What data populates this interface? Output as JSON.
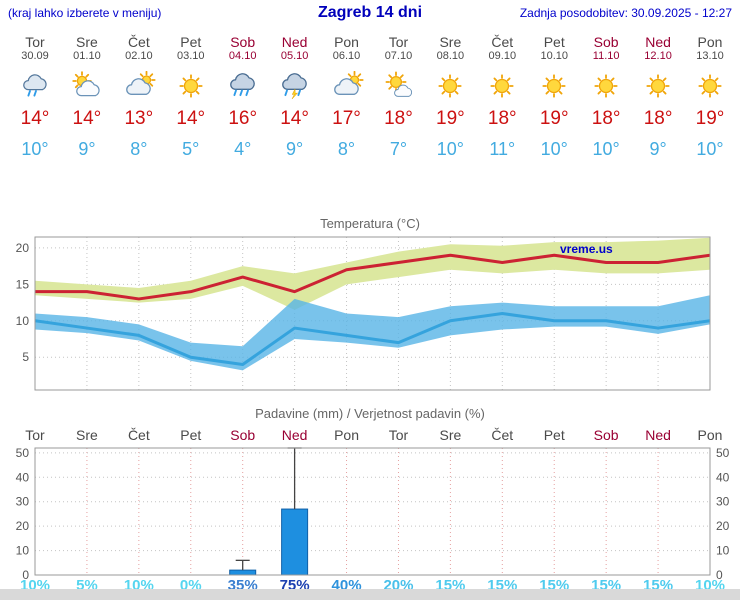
{
  "header": {
    "menu_note": "(kraj lahko izberete v meniju)",
    "title": "Zagreb 14 dni",
    "last_update": "Zadnja posodobitev: 30.09.2025 - 12:27"
  },
  "watermark": "vreme.us",
  "colors": {
    "link_blue": "#0000cc",
    "weekend_red": "#990033",
    "day_gray": "#4a4a4a",
    "high_red": "#cc1111",
    "low_blue": "#42abe0",
    "bar_blue": "#1e8fe0",
    "bar_border": "#1060a8",
    "whisker": "#444444",
    "grid_gray": "#c4c4c4",
    "grid_red": "#e5a0a0",
    "border_gray": "#999999"
  },
  "days": [
    {
      "name": "Tor",
      "date": "30.09",
      "weekend": false,
      "icon": "drizzle",
      "high": "14°",
      "low": "10°"
    },
    {
      "name": "Sre",
      "date": "01.10",
      "weekend": false,
      "icon": "partly",
      "high": "14°",
      "low": "9°"
    },
    {
      "name": "Čet",
      "date": "02.10",
      "weekend": false,
      "icon": "mostly",
      "high": "13°",
      "low": "8°"
    },
    {
      "name": "Pet",
      "date": "03.10",
      "weekend": false,
      "icon": "sunny",
      "high": "14°",
      "low": "5°"
    },
    {
      "name": "Sob",
      "date": "04.10",
      "weekend": true,
      "icon": "rain",
      "high": "16°",
      "low": "4°"
    },
    {
      "name": "Ned",
      "date": "05.10",
      "weekend": true,
      "icon": "storm",
      "high": "14°",
      "low": "9°"
    },
    {
      "name": "Pon",
      "date": "06.10",
      "weekend": false,
      "icon": "mostly",
      "high": "17°",
      "low": "8°"
    },
    {
      "name": "Tor",
      "date": "07.10",
      "weekend": false,
      "icon": "partly-sunny",
      "high": "18°",
      "low": "7°"
    },
    {
      "name": "Sre",
      "date": "08.10",
      "weekend": false,
      "icon": "sunny",
      "high": "19°",
      "low": "10°"
    },
    {
      "name": "Čet",
      "date": "09.10",
      "weekend": false,
      "icon": "sunny",
      "high": "18°",
      "low": "11°"
    },
    {
      "name": "Pet",
      "date": "10.10",
      "weekend": false,
      "icon": "sunny",
      "high": "19°",
      "low": "10°"
    },
    {
      "name": "Sob",
      "date": "11.10",
      "weekend": true,
      "icon": "sunny",
      "high": "18°",
      "low": "10°"
    },
    {
      "name": "Ned",
      "date": "12.10",
      "weekend": true,
      "icon": "sunny",
      "high": "18°",
      "low": "9°"
    },
    {
      "name": "Pon",
      "date": "13.10",
      "weekend": false,
      "icon": "sunny",
      "high": "19°",
      "low": "10°"
    }
  ],
  "chart_data": [
    {
      "type": "line",
      "title": "Temperatura (°C)",
      "x_labels": [
        "Tor 30.09",
        "Sre 01.10",
        "Čet 02.10",
        "Pet 03.10",
        "Sob 04.10",
        "Ned 05.10",
        "Pon 06.10",
        "Tor 07.10",
        "Sre 08.10",
        "Čet 09.10",
        "Pet 10.10",
        "Sob 11.10",
        "Ned 12.10",
        "Pon 13.10"
      ],
      "ylim": [
        0.5,
        21.5
      ],
      "yticks": [
        5,
        10,
        15,
        20
      ],
      "grid": true,
      "series": [
        {
          "name": "max-temp",
          "color": "#cc2233",
          "values": [
            14,
            14,
            13,
            14,
            16,
            14,
            17,
            18,
            19,
            18,
            19,
            18,
            18,
            19
          ]
        },
        {
          "name": "min-temp",
          "color": "#35a3dd",
          "values": [
            10,
            9,
            8,
            5,
            4,
            9,
            8,
            7,
            10,
            11,
            10,
            10,
            9,
            10
          ]
        }
      ],
      "bands": [
        {
          "name": "max-temp-range",
          "color": "#dce8a0",
          "opacity": 1,
          "upper": [
            15.5,
            15,
            14.5,
            15.5,
            17.5,
            16.5,
            18,
            19.5,
            20.5,
            20.3,
            20.8,
            20.8,
            21,
            21.4
          ],
          "lower": [
            13.5,
            13,
            12.5,
            13,
            14.8,
            11.5,
            15,
            16,
            17,
            16.5,
            17,
            16.5,
            16.5,
            17
          ]
        },
        {
          "name": "min-temp-range",
          "color": "#58b4e6",
          "opacity": 0.8,
          "upper": [
            11,
            10.5,
            9.5,
            7,
            6.5,
            13,
            11,
            10.5,
            12,
            12.5,
            12,
            12,
            12,
            13.5
          ],
          "lower": [
            8.8,
            8.3,
            7.3,
            4.5,
            3.2,
            7.5,
            7,
            6.3,
            8,
            8.8,
            9.2,
            9.2,
            8.2,
            9.5
          ]
        }
      ]
    },
    {
      "type": "bar",
      "title": "Padavine (mm) / Verjetnost padavin (%)",
      "x_labels": [
        "Tor",
        "Sre",
        "Čet",
        "Pet",
        "Sob",
        "Ned",
        "Pon",
        "Tor",
        "Sre",
        "Čet",
        "Pet",
        "Sob",
        "Ned",
        "Pon"
      ],
      "weekend_flags": [
        false,
        false,
        false,
        false,
        true,
        true,
        false,
        false,
        false,
        false,
        false,
        true,
        true,
        false
      ],
      "ylim": [
        0,
        52
      ],
      "yticks": [
        0,
        10,
        20,
        30,
        40,
        50
      ],
      "values_mm": [
        0,
        0,
        0,
        0,
        2,
        27,
        0,
        0,
        0,
        0,
        0,
        0,
        0,
        0
      ],
      "whisker_max_mm": [
        0,
        0,
        0,
        0,
        6,
        52,
        0,
        0,
        0,
        0,
        0,
        0,
        0,
        0
      ],
      "probabilities": [
        {
          "text": "10%",
          "color": "#55d5ef"
        },
        {
          "text": "5%",
          "color": "#55d5ef"
        },
        {
          "text": "10%",
          "color": "#55d5ef"
        },
        {
          "text": "0%",
          "color": "#55d5ef"
        },
        {
          "text": "35%",
          "color": "#3a7fd0"
        },
        {
          "text": "75%",
          "color": "#1b3fb0"
        },
        {
          "text": "40%",
          "color": "#2f93dc"
        },
        {
          "text": "20%",
          "color": "#49c0ea"
        },
        {
          "text": "15%",
          "color": "#4fcbee"
        },
        {
          "text": "15%",
          "color": "#4fcbee"
        },
        {
          "text": "15%",
          "color": "#4fcbee"
        },
        {
          "text": "15%",
          "color": "#4fcbee"
        },
        {
          "text": "15%",
          "color": "#4fcbee"
        },
        {
          "text": "10%",
          "color": "#55d5ef"
        }
      ]
    }
  ]
}
